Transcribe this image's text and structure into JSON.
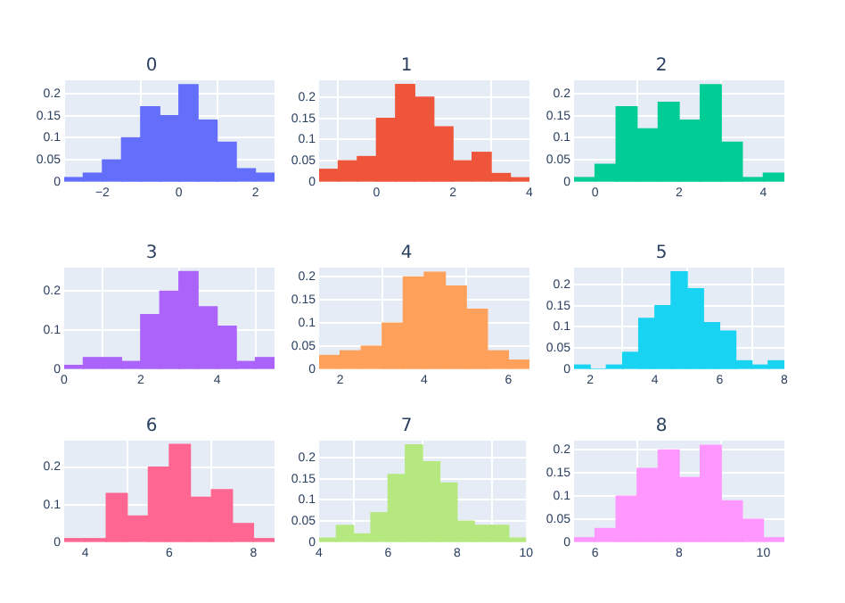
{
  "chart_data": [
    {
      "type": "histogram",
      "title": "0",
      "bins": [
        -3,
        -2.5,
        -2,
        -1.5,
        -1,
        -0.5,
        0,
        0.5,
        1,
        1.5,
        2,
        2.5
      ],
      "values": [
        0.01,
        0.02,
        0.05,
        0.1,
        0.17,
        0.15,
        0.22,
        0.14,
        0.09,
        0.03,
        0.02
      ],
      "color": "#636efa",
      "xlim": [
        -3,
        2.5
      ],
      "xticks": [
        {
          "value": -2,
          "label": "−2"
        },
        0,
        2
      ],
      "ylim": [
        0,
        0.23
      ],
      "yticks": [
        0,
        0.05,
        0.1,
        0.15,
        0.2
      ],
      "grid": true
    },
    {
      "type": "histogram",
      "title": "1",
      "bins": [
        -1.5,
        -1,
        -0.5,
        0,
        0.5,
        1,
        1.5,
        2,
        2.5,
        3,
        3.5,
        4
      ],
      "values": [
        0.03,
        0.05,
        0.06,
        0.15,
        0.23,
        0.2,
        0.13,
        0.05,
        0.07,
        0.02,
        0.01
      ],
      "color": "#ef553b",
      "xlim": [
        -1.5,
        4
      ],
      "xticks": [
        0,
        2,
        4
      ],
      "ylim": [
        0,
        0.24
      ],
      "yticks": [
        0,
        0.05,
        0.1,
        0.15,
        0.2
      ],
      "grid": true
    },
    {
      "type": "histogram",
      "title": "2",
      "bins": [
        -0.5,
        0,
        0.5,
        1,
        1.5,
        2,
        2.5,
        3,
        3.5,
        4,
        4.5
      ],
      "values": [
        0.01,
        0.04,
        0.17,
        0.12,
        0.18,
        0.14,
        0.22,
        0.09,
        0.01,
        0.02
      ],
      "color": "#00cc96",
      "xlim": [
        -0.5,
        4.5
      ],
      "xticks": [
        0,
        2,
        4
      ],
      "ylim": [
        0,
        0.23
      ],
      "yticks": [
        0,
        0.05,
        0.1,
        0.15,
        0.2
      ],
      "grid": true
    },
    {
      "type": "histogram",
      "title": "3",
      "bins": [
        0,
        0.5,
        1,
        1.5,
        2,
        2.5,
        3,
        3.5,
        4,
        4.5,
        5,
        5.5
      ],
      "values": [
        0.01,
        0.03,
        0.03,
        0.02,
        0.14,
        0.2,
        0.25,
        0.16,
        0.11,
        0.02,
        0.03
      ],
      "color": "#ab63fa",
      "xlim": [
        0,
        5.5
      ],
      "xticks": [
        0,
        2,
        4
      ],
      "ylim": [
        0,
        0.26
      ],
      "yticks": [
        0,
        0.1,
        0.2
      ],
      "grid": true
    },
    {
      "type": "histogram",
      "title": "4",
      "bins": [
        1.5,
        2,
        2.5,
        3,
        3.5,
        4,
        4.5,
        5,
        5.5,
        6,
        6.5
      ],
      "values": [
        0.03,
        0.04,
        0.05,
        0.1,
        0.2,
        0.21,
        0.18,
        0.13,
        0.04,
        0.02
      ],
      "color": "#ffa15a",
      "xlim": [
        1.5,
        6.5
      ],
      "xticks": [
        2,
        4,
        6
      ],
      "ylim": [
        0,
        0.22
      ],
      "yticks": [
        0,
        0.05,
        0.1,
        0.15,
        0.2
      ],
      "grid": true
    },
    {
      "type": "histogram",
      "title": "5",
      "bins": [
        1.5,
        2,
        2.5,
        3,
        3.5,
        4,
        4.5,
        5,
        5.5,
        6,
        6.5,
        7,
        7.5,
        8
      ],
      "values": [
        0.01,
        0,
        0.01,
        0.04,
        0.12,
        0.15,
        0.23,
        0.19,
        0.11,
        0.09,
        0.02,
        0.01,
        0.02
      ],
      "color": "#19d3f3",
      "xlim": [
        1.5,
        8
      ],
      "xticks": [
        2,
        4,
        6,
        8
      ],
      "ylim": [
        0,
        0.24
      ],
      "yticks": [
        0,
        0.05,
        0.1,
        0.15,
        0.2
      ],
      "grid": true
    },
    {
      "type": "histogram",
      "title": "6",
      "bins": [
        3.5,
        4,
        4.5,
        5,
        5.5,
        6,
        6.5,
        7,
        7.5,
        8,
        8.5
      ],
      "values": [
        0.01,
        0.01,
        0.13,
        0.07,
        0.2,
        0.26,
        0.12,
        0.14,
        0.05,
        0.01
      ],
      "color": "#ff6692",
      "xlim": [
        3.5,
        8.5
      ],
      "xticks": [
        4,
        6,
        8
      ],
      "ylim": [
        0,
        0.27
      ],
      "yticks": [
        0,
        0.1,
        0.2
      ],
      "grid": true
    },
    {
      "type": "histogram",
      "title": "7",
      "bins": [
        4,
        4.5,
        5,
        5.5,
        6,
        6.5,
        7,
        7.5,
        8,
        8.5,
        9,
        9.5,
        10
      ],
      "values": [
        0.01,
        0.04,
        0.02,
        0.07,
        0.16,
        0.23,
        0.19,
        0.14,
        0.05,
        0.04,
        0.04,
        0.01
      ],
      "color": "#b6e880",
      "xlim": [
        4,
        10
      ],
      "xticks": [
        4,
        6,
        8,
        10
      ],
      "ylim": [
        0,
        0.24
      ],
      "yticks": [
        0,
        0.05,
        0.1,
        0.15,
        0.2
      ],
      "grid": true
    },
    {
      "type": "histogram",
      "title": "8",
      "bins": [
        5.5,
        6,
        6.5,
        7,
        7.5,
        8,
        8.5,
        9,
        9.5,
        10,
        10.5
      ],
      "values": [
        0.01,
        0.03,
        0.1,
        0.16,
        0.2,
        0.14,
        0.21,
        0.09,
        0.05,
        0.01
      ],
      "color": "#ff97ff",
      "xlim": [
        5.5,
        10.5
      ],
      "xticks": [
        6,
        8,
        10
      ],
      "ylim": [
        0,
        0.22
      ],
      "yticks": [
        0,
        0.05,
        0.1,
        0.15,
        0.2
      ],
      "grid": true
    }
  ]
}
